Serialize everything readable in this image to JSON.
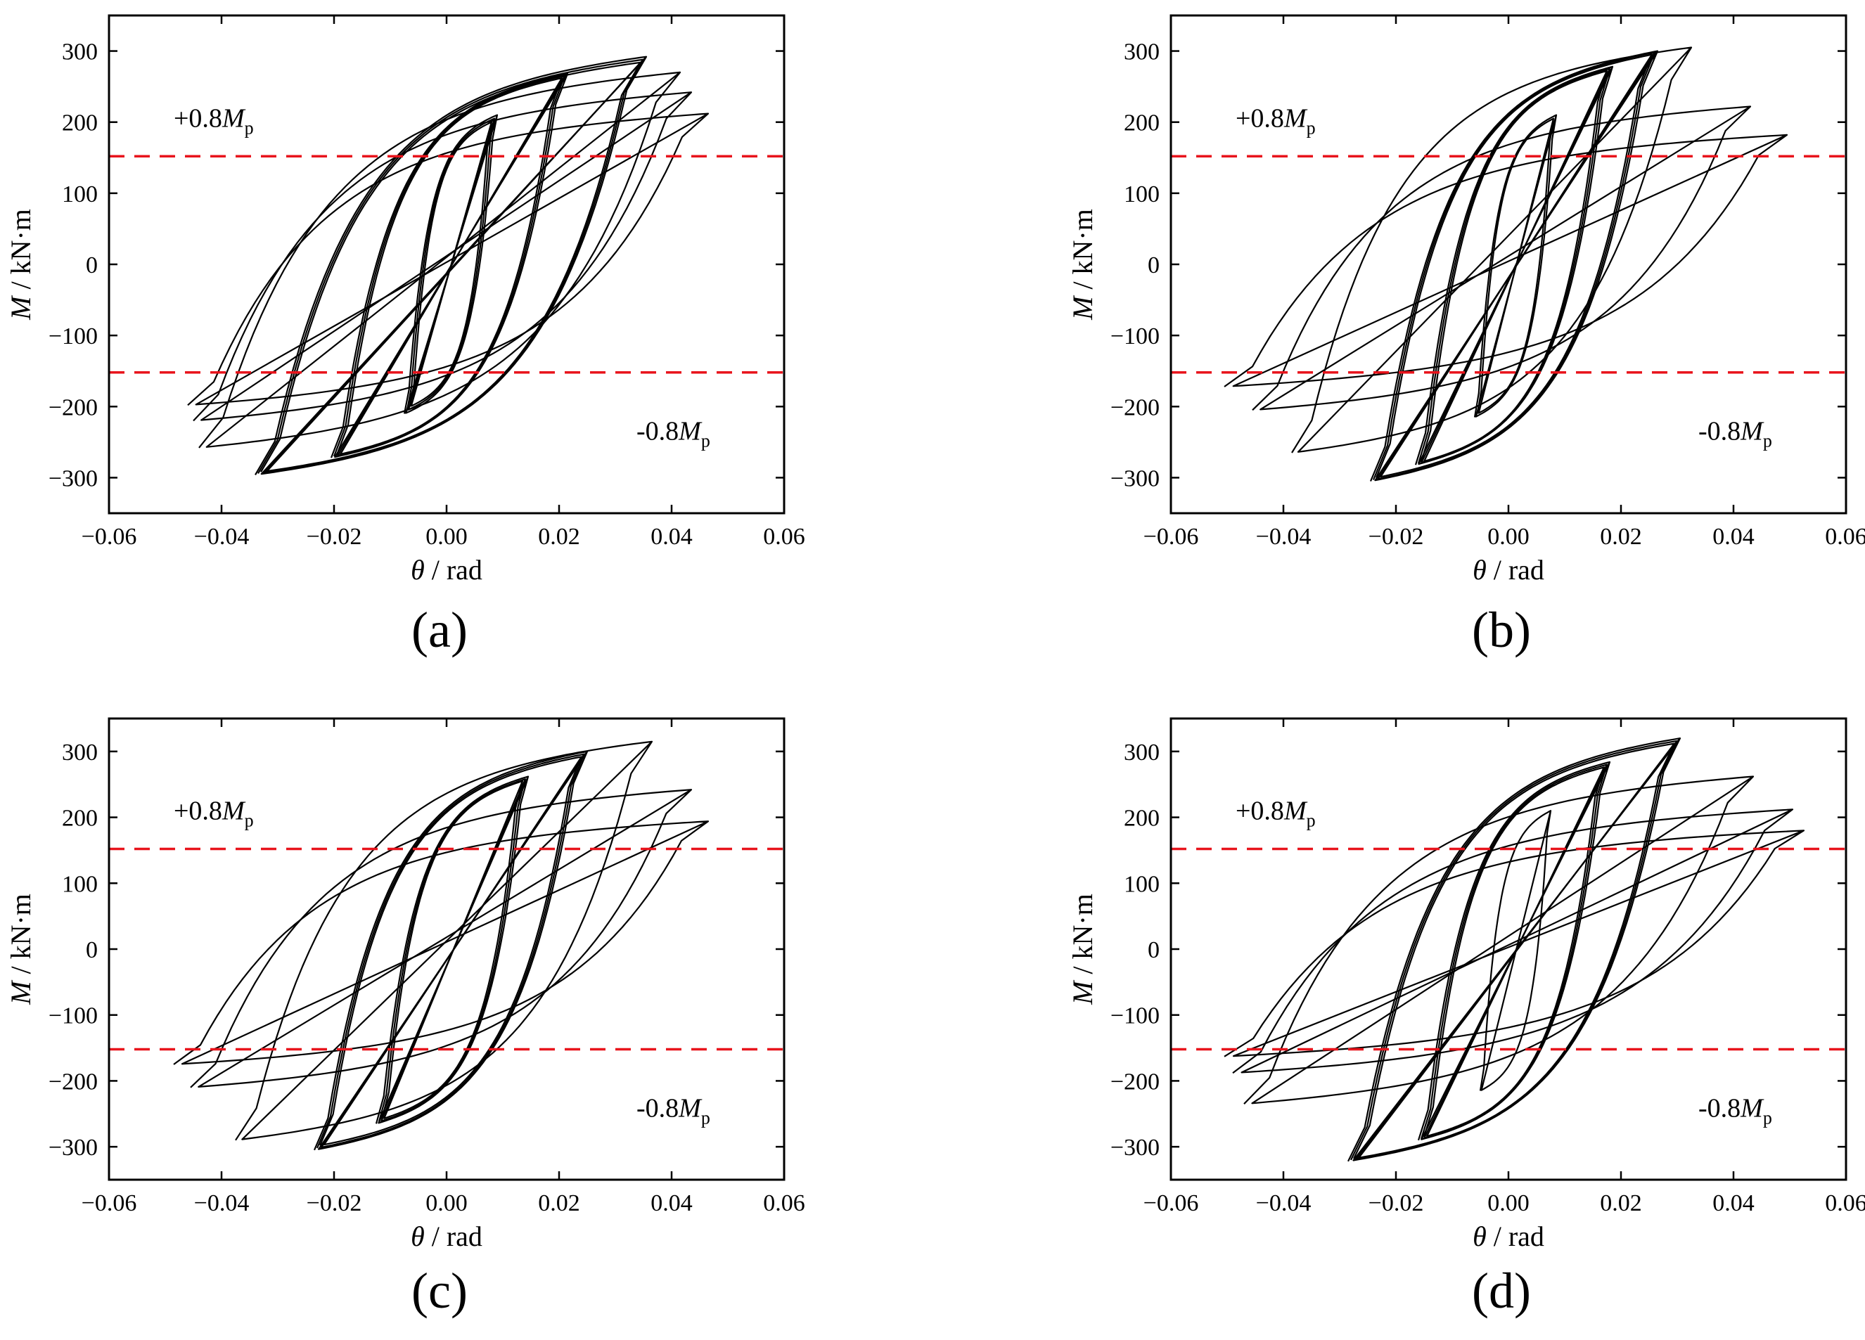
{
  "chart_data": [
    {
      "panel": "(a)",
      "type": "line",
      "xlabel_sym": "θ",
      "xlabel_unit": " / rad",
      "ylabel_sym": "M",
      "ylabel_unit": " / kN·m",
      "xlim": [
        -0.06,
        0.06
      ],
      "ylim": [
        -350,
        350
      ],
      "xticks": [
        -0.06,
        -0.04,
        -0.02,
        0.0,
        0.02,
        0.04,
        0.06
      ],
      "yticks": [
        300,
        200,
        100,
        0,
        -100,
        -200,
        -300
      ],
      "ref_value": 152,
      "ann_pos": "+0.8",
      "ann_neg": "-0.8",
      "ann_sym": "M",
      "ann_sub": "p",
      "cycles": [
        {
          "dmin": -0.0075,
          "fmin": -210,
          "dmax": 0.009,
          "fmax": 210
        },
        {
          "dmin": -0.007,
          "fmin": -205,
          "dmax": 0.0085,
          "fmax": 205
        },
        {
          "dmin": -0.0065,
          "fmin": -200,
          "dmax": 0.008,
          "fmax": 200
        },
        {
          "dmin": -0.0205,
          "fmin": -272,
          "dmax": 0.0215,
          "fmax": 268
        },
        {
          "dmin": -0.02,
          "fmin": -270,
          "dmax": 0.021,
          "fmax": 265
        },
        {
          "dmin": -0.0195,
          "fmin": -268,
          "dmax": 0.0205,
          "fmax": 262
        },
        {
          "dmin": -0.034,
          "fmin": -296,
          "dmax": 0.0355,
          "fmax": 292
        },
        {
          "dmin": -0.0335,
          "fmin": -294,
          "dmax": 0.035,
          "fmax": 288
        },
        {
          "dmin": -0.033,
          "fmin": -292,
          "dmax": 0.0345,
          "fmax": 284
        },
        {
          "dmin": -0.044,
          "fmin": -258,
          "dmax": 0.0415,
          "fmax": 270
        },
        {
          "dmin": -0.045,
          "fmin": -220,
          "dmax": 0.0435,
          "fmax": 242
        },
        {
          "dmin": -0.046,
          "fmin": -198,
          "dmax": 0.0465,
          "fmax": 212
        }
      ]
    },
    {
      "panel": "(b)",
      "type": "line",
      "xlabel_sym": "θ",
      "xlabel_unit": " / rad",
      "ylabel_sym": "M",
      "ylabel_unit": " / kN·m",
      "xlim": [
        -0.06,
        0.06
      ],
      "ylim": [
        -350,
        350
      ],
      "xticks": [
        -0.06,
        -0.04,
        -0.02,
        0.0,
        0.02,
        0.04,
        0.06
      ],
      "yticks": [
        300,
        200,
        100,
        0,
        -100,
        -200,
        -300
      ],
      "ref_value": 152,
      "ann_pos": "+0.8",
      "ann_neg": "-0.8",
      "ann_sym": "M",
      "ann_sub": "p",
      "cycles": [
        {
          "dmin": -0.006,
          "fmin": -215,
          "dmax": 0.0085,
          "fmax": 210
        },
        {
          "dmin": -0.0055,
          "fmin": -210,
          "dmax": 0.008,
          "fmax": 205
        },
        {
          "dmin": -0.0165,
          "fmin": -282,
          "dmax": 0.0185,
          "fmax": 278
        },
        {
          "dmin": -0.016,
          "fmin": -280,
          "dmax": 0.018,
          "fmax": 275
        },
        {
          "dmin": -0.0155,
          "fmin": -278,
          "dmax": 0.0175,
          "fmax": 272
        },
        {
          "dmin": -0.0245,
          "fmin": -305,
          "dmax": 0.0265,
          "fmax": 300
        },
        {
          "dmin": -0.024,
          "fmin": -303,
          "dmax": 0.026,
          "fmax": 298
        },
        {
          "dmin": -0.0235,
          "fmin": -300,
          "dmax": 0.0255,
          "fmax": 295
        },
        {
          "dmin": -0.0385,
          "fmin": -265,
          "dmax": 0.0325,
          "fmax": 305
        },
        {
          "dmin": -0.0455,
          "fmin": -205,
          "dmax": 0.043,
          "fmax": 222
        },
        {
          "dmin": -0.0505,
          "fmin": -172,
          "dmax": 0.0495,
          "fmax": 182
        }
      ]
    },
    {
      "panel": "(c)",
      "type": "line",
      "xlabel_sym": "θ",
      "xlabel_unit": " / rad",
      "ylabel_sym": "M",
      "ylabel_unit": " / kN·m",
      "xlim": [
        -0.06,
        0.06
      ],
      "ylim": [
        -350,
        350
      ],
      "xticks": [
        -0.06,
        -0.04,
        -0.02,
        0.0,
        0.02,
        0.04,
        0.06
      ],
      "yticks": [
        300,
        200,
        100,
        0,
        -100,
        -200,
        -300
      ],
      "ref_value": 152,
      "ann_pos": "+0.8",
      "ann_neg": "-0.8",
      "ann_sym": "M",
      "ann_sub": "p",
      "cycles": [
        {
          "dmin": -0.0125,
          "fmin": -265,
          "dmax": 0.0145,
          "fmax": 262
        },
        {
          "dmin": -0.012,
          "fmin": -262,
          "dmax": 0.014,
          "fmax": 258
        },
        {
          "dmin": -0.0115,
          "fmin": -258,
          "dmax": 0.0135,
          "fmax": 255
        },
        {
          "dmin": -0.0235,
          "fmin": -305,
          "dmax": 0.025,
          "fmax": 300
        },
        {
          "dmin": -0.023,
          "fmin": -302,
          "dmax": 0.0245,
          "fmax": 296
        },
        {
          "dmin": -0.0225,
          "fmin": -298,
          "dmax": 0.024,
          "fmax": 292
        },
        {
          "dmin": -0.0375,
          "fmin": -290,
          "dmax": 0.0365,
          "fmax": 315
        },
        {
          "dmin": -0.0455,
          "fmin": -210,
          "dmax": 0.0435,
          "fmax": 242
        },
        {
          "dmin": -0.0485,
          "fmin": -175,
          "dmax": 0.0465,
          "fmax": 194
        }
      ]
    },
    {
      "panel": "(d)",
      "type": "line",
      "xlabel_sym": "θ",
      "xlabel_unit": " / rad",
      "ylabel_sym": "M",
      "ylabel_unit": " / kN·m",
      "xlim": [
        -0.06,
        0.06
      ],
      "ylim": [
        -350,
        350
      ],
      "xticks": [
        -0.06,
        -0.04,
        -0.02,
        0.0,
        0.02,
        0.04,
        0.06
      ],
      "yticks": [
        300,
        200,
        100,
        0,
        -100,
        -200,
        -300
      ],
      "ref_value": 152,
      "ann_pos": "+0.8",
      "ann_neg": "-0.8",
      "ann_sym": "M",
      "ann_sub": "p",
      "cycles": [
        {
          "dmin": -0.005,
          "fmin": -215,
          "dmax": 0.0075,
          "fmax": 210
        },
        {
          "dmin": -0.016,
          "fmin": -290,
          "dmax": 0.018,
          "fmax": 284
        },
        {
          "dmin": -0.0155,
          "fmin": -288,
          "dmax": 0.0175,
          "fmax": 280
        },
        {
          "dmin": -0.015,
          "fmin": -285,
          "dmax": 0.017,
          "fmax": 276
        },
        {
          "dmin": -0.0285,
          "fmin": -322,
          "dmax": 0.0305,
          "fmax": 320
        },
        {
          "dmin": -0.028,
          "fmin": -320,
          "dmax": 0.03,
          "fmax": 316
        },
        {
          "dmin": -0.0275,
          "fmin": -318,
          "dmax": 0.0295,
          "fmax": 312
        },
        {
          "dmin": -0.047,
          "fmin": -235,
          "dmax": 0.0435,
          "fmax": 262
        },
        {
          "dmin": -0.049,
          "fmin": -188,
          "dmax": 0.0505,
          "fmax": 212
        },
        {
          "dmin": -0.0505,
          "fmin": -163,
          "dmax": 0.0525,
          "fmax": 180
        }
      ]
    }
  ]
}
